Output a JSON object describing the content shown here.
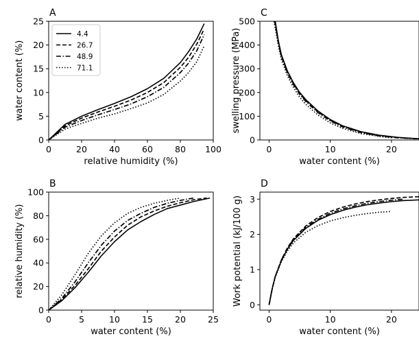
{
  "chart_data": [
    {
      "panel": "A",
      "type": "line",
      "xlabel": "relative humidity (%)",
      "ylabel": "water content (%)",
      "xlim": [
        0,
        100
      ],
      "ylim": [
        0,
        25
      ],
      "xticks": [
        0,
        20,
        40,
        60,
        80,
        100
      ],
      "yticks": [
        0,
        5,
        10,
        15,
        20,
        25
      ],
      "legend": "top-left",
      "series": [
        {
          "name": "4.4",
          "style": "solid",
          "x": [
            0,
            10,
            20,
            30,
            40,
            50,
            60,
            70,
            80,
            85,
            90,
            94.5
          ],
          "y": [
            0,
            3.3,
            5.0,
            6.4,
            7.7,
            9.1,
            10.8,
            13.0,
            16.3,
            18.6,
            21.3,
            24.5
          ]
        },
        {
          "name": "26.7",
          "style": "dashed",
          "x": [
            0,
            10,
            20,
            30,
            40,
            50,
            60,
            70,
            80,
            85,
            90,
            94.5
          ],
          "y": [
            0,
            3.0,
            4.6,
            5.9,
            7.1,
            8.4,
            10.0,
            12.1,
            15.3,
            17.4,
            20.2,
            23.4
          ]
        },
        {
          "name": "48.9",
          "style": "dashdot",
          "x": [
            0,
            10,
            20,
            30,
            40,
            50,
            60,
            70,
            80,
            85,
            90,
            94.5
          ],
          "y": [
            0,
            2.7,
            4.1,
            5.3,
            6.4,
            7.6,
            9.1,
            11.1,
            14.2,
            16.2,
            18.8,
            22.2
          ]
        },
        {
          "name": "71.1",
          "style": "dotted",
          "x": [
            0,
            10,
            20,
            30,
            40,
            50,
            60,
            70,
            80,
            85,
            90,
            94.5
          ],
          "y": [
            0,
            2.3,
            3.5,
            4.6,
            5.5,
            6.6,
            7.8,
            9.6,
            12.4,
            14.2,
            16.5,
            19.8
          ]
        }
      ]
    },
    {
      "panel": "B",
      "type": "line",
      "xlabel": "water content (%)",
      "ylabel": "relative humidity (%)",
      "xlim": [
        0,
        25
      ],
      "ylim": [
        0,
        100
      ],
      "xticks": [
        0,
        5,
        10,
        15,
        20,
        25
      ],
      "yticks": [
        0,
        20,
        40,
        60,
        80,
        100
      ],
      "series": [
        {
          "name": "4.4",
          "style": "solid",
          "x": [
            0,
            2,
            4,
            6,
            8,
            10,
            12,
            14,
            16,
            18,
            20,
            22,
            24.5
          ],
          "y": [
            0,
            8,
            19,
            32,
            46,
            58,
            68,
            75,
            81,
            86,
            89,
            92,
            95
          ]
        },
        {
          "name": "26.7",
          "style": "dashed",
          "x": [
            0,
            2,
            4,
            6,
            8,
            10,
            12,
            14,
            16,
            18,
            20,
            22,
            24
          ],
          "y": [
            0,
            9,
            21,
            35,
            50,
            62,
            72,
            79,
            84,
            88,
            91,
            93.5,
            95
          ]
        },
        {
          "name": "48.9",
          "style": "dashdot",
          "x": [
            0,
            2,
            4,
            6,
            8,
            10,
            12,
            14,
            16,
            18,
            20,
            22
          ],
          "y": [
            0,
            10,
            24,
            40,
            55,
            67,
            76,
            82,
            87,
            90.5,
            93,
            95
          ]
        },
        {
          "name": "71.1",
          "style": "dotted",
          "x": [
            0,
            2,
            4,
            6,
            8,
            10,
            12,
            14,
            16,
            18,
            20
          ],
          "y": [
            0,
            13,
            30,
            48,
            63,
            74,
            82,
            87,
            90.5,
            93,
            95
          ]
        }
      ]
    },
    {
      "panel": "C",
      "type": "line",
      "xlabel": "water content (%)",
      "ylabel": "swelling pressure (MPa)",
      "xlim": [
        -1.5,
        24.5
      ],
      "ylim": [
        0,
        500
      ],
      "xticks": [
        0,
        10,
        20
      ],
      "yticks": [
        0,
        100,
        200,
        300,
        400,
        500
      ],
      "series": [
        {
          "name": "4.4",
          "style": "solid",
          "x": [
            1,
            1.5,
            2,
            3,
            4,
            5,
            6,
            8,
            10,
            12,
            15,
            18,
            21,
            24.5
          ],
          "y": [
            500,
            420,
            360,
            290,
            240,
            200,
            170,
            122,
            86,
            60,
            35,
            20,
            11,
            5
          ]
        },
        {
          "name": "26.7",
          "style": "dashed",
          "x": [
            0.9,
            1.5,
            2,
            3,
            4,
            5,
            6,
            8,
            10,
            12,
            15,
            18,
            21,
            24.5
          ],
          "y": [
            500,
            415,
            355,
            285,
            236,
            196,
            166,
            118,
            83,
            58,
            33,
            19,
            10,
            5
          ]
        },
        {
          "name": "48.9",
          "style": "dashdot",
          "x": [
            1,
            1.5,
            2,
            3,
            4,
            5,
            6,
            8,
            10,
            12,
            15,
            18,
            21,
            24
          ],
          "y": [
            500,
            410,
            352,
            282,
            232,
            192,
            162,
            115,
            80,
            55,
            31,
            17,
            9,
            5
          ]
        },
        {
          "name": "71.1",
          "style": "dotted",
          "x": [
            0.8,
            1.5,
            2,
            3,
            4,
            5,
            6,
            8,
            10,
            12,
            15,
            18,
            20
          ],
          "y": [
            500,
            400,
            340,
            270,
            220,
            180,
            150,
            105,
            72,
            49,
            27,
            15,
            9
          ]
        }
      ]
    },
    {
      "panel": "D",
      "type": "line",
      "xlabel": "water content (%)",
      "ylabel": "Work potential (kJ/100 g)",
      "xlim": [
        -1.5,
        24.5
      ],
      "ylim": [
        -0.15,
        3.2
      ],
      "xticks": [
        0,
        10,
        20
      ],
      "yticks": [
        0,
        1,
        2,
        3
      ],
      "series": [
        {
          "name": "4.4",
          "style": "solid",
          "x": [
            0,
            0.5,
            1,
            2,
            3,
            4,
            6,
            8,
            10,
            12,
            14,
            16,
            18,
            20,
            22,
            24.5
          ],
          "y": [
            0,
            0.45,
            0.8,
            1.25,
            1.58,
            1.83,
            2.17,
            2.4,
            2.56,
            2.68,
            2.77,
            2.84,
            2.89,
            2.93,
            2.96,
            2.98
          ]
        },
        {
          "name": "26.7",
          "style": "dashed",
          "x": [
            0,
            0.5,
            1,
            2,
            3,
            4,
            6,
            8,
            10,
            12,
            14,
            16,
            18,
            20,
            22,
            24.5
          ],
          "y": [
            0,
            0.45,
            0.8,
            1.27,
            1.62,
            1.88,
            2.24,
            2.48,
            2.65,
            2.77,
            2.86,
            2.93,
            2.98,
            3.02,
            3.05,
            3.07
          ]
        },
        {
          "name": "48.9",
          "style": "dashdot",
          "x": [
            0,
            0.5,
            1,
            2,
            3,
            4,
            6,
            8,
            10,
            12,
            14,
            16,
            18,
            20,
            22
          ],
          "y": [
            0,
            0.45,
            0.8,
            1.27,
            1.61,
            1.86,
            2.2,
            2.43,
            2.6,
            2.72,
            2.81,
            2.88,
            2.93,
            2.97,
            3.0
          ]
        },
        {
          "name": "71.1",
          "style": "dotted",
          "x": [
            0,
            0.5,
            1,
            2,
            3,
            4,
            6,
            8,
            10,
            12,
            14,
            16,
            18,
            20
          ],
          "y": [
            0,
            0.44,
            0.78,
            1.22,
            1.53,
            1.76,
            2.06,
            2.25,
            2.38,
            2.47,
            2.54,
            2.59,
            2.63,
            2.65
          ]
        }
      ]
    }
  ]
}
